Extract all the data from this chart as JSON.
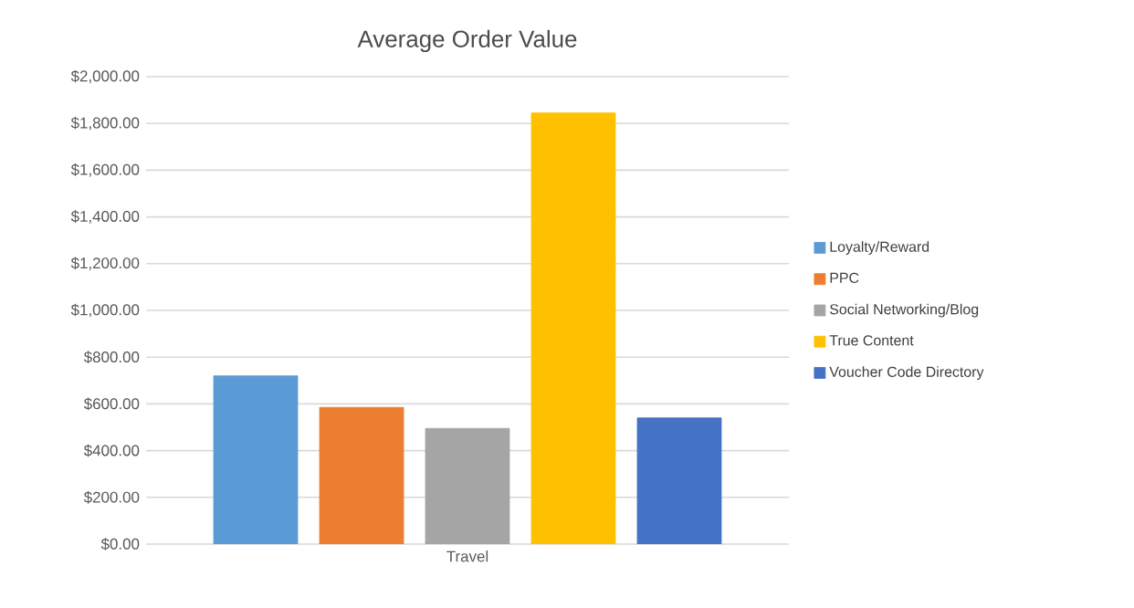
{
  "chart_data": {
    "type": "bar",
    "title": "Average Order Value",
    "categories": [
      "Travel"
    ],
    "series": [
      {
        "name": "Loyalty/Reward",
        "color": "#5b9bd5",
        "values": [
          720
        ]
      },
      {
        "name": "PPC",
        "color": "#ed7d31",
        "values": [
          585
        ]
      },
      {
        "name": "Social Networking/Blog",
        "color": "#a5a5a5",
        "values": [
          495
        ]
      },
      {
        "name": "True Content",
        "color": "#ffc000",
        "values": [
          1845
        ]
      },
      {
        "name": "Voucher Code Directory",
        "color": "#4472c4",
        "values": [
          540
        ]
      }
    ],
    "ylim": [
      0,
      2000
    ],
    "yticks": [
      {
        "value": 0,
        "label": "$0.00"
      },
      {
        "value": 200,
        "label": "$200.00"
      },
      {
        "value": 400,
        "label": "$400.00"
      },
      {
        "value": 600,
        "label": "$600.00"
      },
      {
        "value": 800,
        "label": "$800.00"
      },
      {
        "value": 1000,
        "label": "$1,000.00"
      },
      {
        "value": 1200,
        "label": "$1,200.00"
      },
      {
        "value": 1400,
        "label": "$1,400.00"
      },
      {
        "value": 1600,
        "label": "$1,600.00"
      },
      {
        "value": 1800,
        "label": "$1,800.00"
      },
      {
        "value": 2000,
        "label": "$2,000.00"
      }
    ],
    "grid": "y",
    "legend": "right"
  }
}
